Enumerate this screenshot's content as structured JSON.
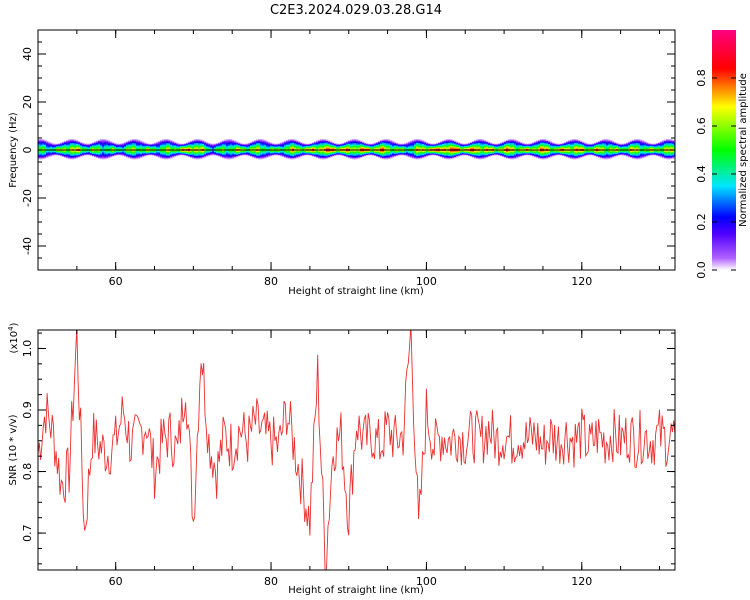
{
  "title": "C2E3.2024.029.03.28.G14",
  "chart_data": [
    {
      "type": "heatmap",
      "xlabel": "Height of straight line (km)",
      "ylabel": "Frequency (Hz)",
      "xlim": [
        50,
        132
      ],
      "ylim": [
        -50,
        50
      ],
      "xticks": [
        60,
        80,
        100,
        120
      ],
      "yticks": [
        -40,
        -20,
        0,
        20,
        40
      ],
      "band_center_hz": 0,
      "band_halfwidth_hz": 4,
      "colorbar": {
        "label": "Normalized spectral amplitude",
        "range": [
          0.0,
          1.0
        ],
        "ticks": [
          "0.0",
          "0.2",
          "0.4",
          "0.6",
          "0.8"
        ],
        "colors": [
          "#ffffff",
          "#7f00ff",
          "#0000ff",
          "#00e5ff",
          "#00ff00",
          "#ffff00",
          "#ff0000",
          "#ff0080"
        ]
      },
      "intensity_profile": {
        "x": [
          50,
          52,
          54,
          56,
          58,
          60,
          62,
          64,
          66,
          68,
          70,
          72,
          74,
          76,
          78,
          80,
          82,
          84,
          86,
          88,
          90,
          92,
          94,
          96,
          98,
          100,
          102,
          104,
          106,
          108,
          110,
          112,
          114,
          116,
          118,
          120,
          122,
          124,
          126,
          128,
          130,
          132
        ],
        "peak": [
          0.55,
          0.6,
          0.8,
          0.7,
          0.6,
          0.6,
          0.65,
          0.7,
          0.6,
          0.8,
          0.9,
          0.55,
          0.6,
          0.75,
          0.7,
          0.6,
          0.7,
          0.8,
          0.85,
          0.95,
          0.8,
          0.9,
          0.85,
          0.7,
          0.6,
          0.9,
          0.95,
          0.95,
          0.9,
          0.8,
          0.85,
          0.75,
          0.85,
          0.8,
          0.85,
          0.8,
          0.8,
          0.7,
          0.75,
          0.7,
          0.75,
          0.7
        ]
      }
    },
    {
      "type": "line",
      "xlabel": "Height of straight line (km)",
      "ylabel": "SNR (10 * v/v)",
      "scale_label": "(x10",
      "scale_exp": "4",
      "scale_close": ")",
      "xlim": [
        50,
        132
      ],
      "ylim": [
        0.64,
        1.03
      ],
      "xticks": [
        60,
        80,
        100,
        120
      ],
      "yticks": [
        "0.7",
        "0.8",
        "0.9",
        "1.0"
      ],
      "color": "#e8302f",
      "x": [
        50,
        51,
        52,
        53,
        54,
        55,
        56,
        57,
        58,
        59,
        60,
        61,
        62,
        63,
        64,
        65,
        66,
        67,
        68,
        69,
        70,
        71,
        72,
        73,
        74,
        75,
        76,
        77,
        78,
        79,
        80,
        81,
        82,
        83,
        84,
        85,
        86,
        87,
        88,
        89,
        90,
        91,
        92,
        93,
        94,
        95,
        96,
        97,
        98,
        99,
        100,
        101,
        102,
        103,
        104,
        105,
        106,
        107,
        108,
        109,
        110,
        111,
        112,
        113,
        114,
        115,
        116,
        117,
        118,
        119,
        120,
        121,
        122,
        123,
        124,
        125,
        126,
        127,
        128,
        129,
        130,
        131,
        132
      ],
      "y": [
        0.83,
        0.9,
        0.86,
        0.78,
        0.8,
        1.02,
        0.7,
        0.86,
        0.84,
        0.83,
        0.85,
        0.9,
        0.84,
        0.86,
        0.88,
        0.8,
        0.85,
        0.86,
        0.83,
        0.95,
        0.72,
        1.0,
        0.85,
        0.8,
        0.86,
        0.84,
        0.87,
        0.85,
        0.88,
        0.86,
        0.85,
        0.84,
        0.9,
        0.84,
        0.78,
        0.72,
        0.96,
        0.65,
        0.84,
        0.86,
        0.73,
        0.88,
        0.85,
        0.86,
        0.84,
        0.87,
        0.85,
        0.86,
        1.03,
        0.7,
        0.9,
        0.84,
        0.86,
        0.85,
        0.86,
        0.85,
        0.86,
        0.85,
        0.87,
        0.85,
        0.86,
        0.85,
        0.86,
        0.85,
        0.86,
        0.84,
        0.86,
        0.85,
        0.86,
        0.85,
        0.86,
        0.84,
        0.86,
        0.85,
        0.86,
        0.85,
        0.86,
        0.85,
        0.86,
        0.85,
        0.86,
        0.85,
        0.86
      ]
    }
  ]
}
